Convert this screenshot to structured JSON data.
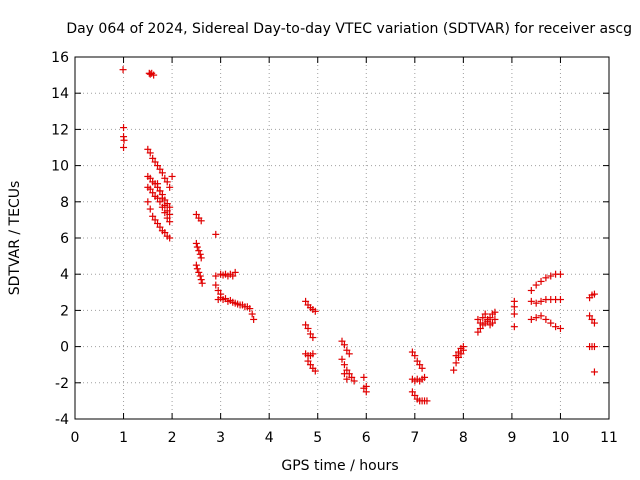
{
  "chart_data": {
    "type": "scatter",
    "title": "Day 064 of 2024, Sidereal Day-to-day VTEC variation (SDTVAR) for receiver ascg",
    "xlabel": "GPS time / hours",
    "ylabel": "SDTVAR / TECUs",
    "xlim": [
      0,
      11
    ],
    "ylim": [
      -4,
      16
    ],
    "xticks": [
      "0",
      "1",
      "2",
      "3",
      "4",
      "5",
      "6",
      "7",
      "8",
      "9",
      "10",
      "11"
    ],
    "yticks": [
      "-4",
      "-2",
      "0",
      "2",
      "4",
      "6",
      "8",
      "10",
      "12",
      "14",
      "16"
    ],
    "grid": true,
    "marker": "plus",
    "color": "#e00000",
    "points": [
      [
        0.99,
        15.3
      ],
      [
        1.0,
        12.1
      ],
      [
        1.0,
        11.6
      ],
      [
        1.01,
        11.4
      ],
      [
        1.0,
        11.0
      ],
      [
        1.53,
        15.1
      ],
      [
        1.55,
        15.05
      ],
      [
        1.58,
        15.1
      ],
      [
        1.62,
        15.0
      ],
      [
        1.5,
        10.9
      ],
      [
        1.55,
        10.7
      ],
      [
        1.6,
        10.4
      ],
      [
        1.65,
        10.2
      ],
      [
        1.7,
        10.0
      ],
      [
        1.75,
        9.8
      ],
      [
        1.8,
        9.6
      ],
      [
        1.85,
        9.3
      ],
      [
        1.9,
        9.1
      ],
      [
        1.95,
        8.8
      ],
      [
        1.5,
        9.4
      ],
      [
        1.55,
        9.3
      ],
      [
        1.6,
        9.1
      ],
      [
        1.65,
        9.0
      ],
      [
        1.7,
        8.8
      ],
      [
        1.75,
        8.6
      ],
      [
        1.8,
        8.4
      ],
      [
        1.85,
        8.1
      ],
      [
        1.9,
        7.9
      ],
      [
        1.95,
        7.7
      ],
      [
        1.5,
        8.8
      ],
      [
        1.55,
        8.7
      ],
      [
        1.6,
        8.5
      ],
      [
        1.65,
        8.3
      ],
      [
        1.7,
        8.2
      ],
      [
        1.75,
        8.0
      ],
      [
        1.8,
        7.7
      ],
      [
        1.85,
        7.4
      ],
      [
        1.9,
        7.1
      ],
      [
        1.95,
        6.9
      ],
      [
        1.5,
        8.0
      ],
      [
        1.55,
        7.6
      ],
      [
        1.6,
        7.2
      ],
      [
        1.65,
        7.0
      ],
      [
        1.7,
        6.8
      ],
      [
        1.75,
        6.6
      ],
      [
        1.8,
        6.4
      ],
      [
        1.85,
        6.3
      ],
      [
        1.9,
        6.1
      ],
      [
        1.95,
        6.0
      ],
      [
        1.7,
        9.0
      ],
      [
        1.75,
        8.6
      ],
      [
        1.8,
        8.2
      ],
      [
        1.85,
        7.8
      ],
      [
        1.9,
        7.5
      ],
      [
        1.95,
        7.3
      ],
      [
        2.0,
        9.4
      ],
      [
        2.5,
        7.3
      ],
      [
        2.55,
        7.1
      ],
      [
        2.6,
        6.95
      ],
      [
        2.5,
        5.7
      ],
      [
        2.52,
        5.5
      ],
      [
        2.55,
        5.3
      ],
      [
        2.58,
        5.1
      ],
      [
        2.6,
        4.9
      ],
      [
        2.5,
        4.5
      ],
      [
        2.52,
        4.3
      ],
      [
        2.55,
        4.1
      ],
      [
        2.58,
        3.9
      ],
      [
        2.6,
        3.7
      ],
      [
        2.62,
        3.5
      ],
      [
        2.9,
        6.2
      ],
      [
        2.9,
        3.9
      ],
      [
        2.9,
        3.4
      ],
      [
        2.95,
        3.1
      ],
      [
        3.0,
        2.9
      ],
      [
        3.0,
        4.0
      ],
      [
        3.05,
        3.95
      ],
      [
        3.1,
        4.0
      ],
      [
        3.15,
        3.9
      ],
      [
        3.2,
        4.0
      ],
      [
        3.25,
        3.9
      ],
      [
        3.3,
        4.1
      ],
      [
        2.95,
        2.6
      ],
      [
        3.0,
        2.7
      ],
      [
        3.05,
        2.6
      ],
      [
        3.1,
        2.65
      ],
      [
        3.15,
        2.5
      ],
      [
        3.2,
        2.55
      ],
      [
        3.25,
        2.45
      ],
      [
        3.3,
        2.4
      ],
      [
        3.35,
        2.35
      ],
      [
        3.4,
        2.3
      ],
      [
        3.45,
        2.3
      ],
      [
        3.5,
        2.2
      ],
      [
        3.55,
        2.2
      ],
      [
        3.6,
        2.1
      ],
      [
        3.65,
        1.8
      ],
      [
        3.68,
        1.5
      ],
      [
        4.75,
        2.5
      ],
      [
        4.8,
        2.3
      ],
      [
        4.85,
        2.15
      ],
      [
        4.9,
        2.05
      ],
      [
        4.95,
        1.95
      ],
      [
        4.75,
        1.2
      ],
      [
        4.8,
        1.0
      ],
      [
        4.85,
        0.7
      ],
      [
        4.9,
        0.5
      ],
      [
        4.75,
        -0.4
      ],
      [
        4.8,
        -0.5
      ],
      [
        4.85,
        -0.5
      ],
      [
        4.9,
        -0.4
      ],
      [
        4.8,
        -0.8
      ],
      [
        4.85,
        -1.0
      ],
      [
        4.9,
        -1.2
      ],
      [
        4.95,
        -1.35
      ],
      [
        5.5,
        0.3
      ],
      [
        5.55,
        0.1
      ],
      [
        5.6,
        -0.2
      ],
      [
        5.65,
        -0.4
      ],
      [
        5.5,
        -0.7
      ],
      [
        5.55,
        -1.0
      ],
      [
        5.6,
        -1.3
      ],
      [
        5.65,
        -1.5
      ],
      [
        5.7,
        -1.7
      ],
      [
        5.75,
        -1.9
      ],
      [
        5.55,
        -1.5
      ],
      [
        5.6,
        -1.8
      ],
      [
        5.95,
        -1.7
      ],
      [
        5.95,
        -2.3
      ],
      [
        6.0,
        -2.5
      ],
      [
        6.0,
        -2.2
      ],
      [
        6.95,
        -0.3
      ],
      [
        7.0,
        -0.5
      ],
      [
        7.05,
        -0.8
      ],
      [
        7.1,
        -1.0
      ],
      [
        7.15,
        -1.2
      ],
      [
        6.95,
        -1.8
      ],
      [
        7.0,
        -1.9
      ],
      [
        7.05,
        -1.8
      ],
      [
        7.1,
        -1.9
      ],
      [
        7.15,
        -1.8
      ],
      [
        7.2,
        -1.7
      ],
      [
        6.95,
        -2.5
      ],
      [
        7.0,
        -2.7
      ],
      [
        7.05,
        -2.9
      ],
      [
        7.1,
        -3.0
      ],
      [
        7.15,
        -3.0
      ],
      [
        7.2,
        -3.0
      ],
      [
        7.25,
        -3.0
      ],
      [
        7.8,
        -1.3
      ],
      [
        7.85,
        -0.9
      ],
      [
        7.9,
        -0.6
      ],
      [
        7.95,
        -0.4
      ],
      [
        8.0,
        -0.2
      ],
      [
        7.85,
        -0.5
      ],
      [
        7.9,
        -0.3
      ],
      [
        7.95,
        -0.1
      ],
      [
        8.0,
        0.0
      ],
      [
        8.3,
        0.8
      ],
      [
        8.35,
        1.0
      ],
      [
        8.4,
        1.2
      ],
      [
        8.45,
        1.3
      ],
      [
        8.5,
        1.4
      ],
      [
        8.55,
        1.6
      ],
      [
        8.6,
        1.8
      ],
      [
        8.65,
        1.9
      ],
      [
        8.3,
        1.5
      ],
      [
        8.35,
        1.3
      ],
      [
        8.4,
        1.6
      ],
      [
        8.45,
        1.8
      ],
      [
        8.5,
        1.5
      ],
      [
        8.55,
        1.2
      ],
      [
        8.6,
        1.3
      ],
      [
        8.65,
        1.5
      ],
      [
        9.05,
        2.5
      ],
      [
        9.05,
        2.2
      ],
      [
        9.05,
        1.8
      ],
      [
        9.05,
        1.1
      ],
      [
        9.4,
        3.1
      ],
      [
        9.5,
        3.4
      ],
      [
        9.6,
        3.6
      ],
      [
        9.7,
        3.8
      ],
      [
        9.8,
        3.9
      ],
      [
        9.9,
        4.0
      ],
      [
        10.0,
        4.0
      ],
      [
        9.4,
        2.5
      ],
      [
        9.5,
        2.4
      ],
      [
        9.6,
        2.5
      ],
      [
        9.7,
        2.6
      ],
      [
        9.8,
        2.6
      ],
      [
        9.9,
        2.6
      ],
      [
        10.0,
        2.6
      ],
      [
        9.4,
        1.5
      ],
      [
        9.5,
        1.6
      ],
      [
        9.6,
        1.7
      ],
      [
        9.7,
        1.5
      ],
      [
        9.8,
        1.3
      ],
      [
        9.9,
        1.1
      ],
      [
        10.0,
        1.0
      ],
      [
        10.6,
        2.7
      ],
      [
        10.65,
        2.85
      ],
      [
        10.7,
        2.9
      ],
      [
        10.6,
        1.7
      ],
      [
        10.65,
        1.5
      ],
      [
        10.7,
        1.3
      ],
      [
        10.6,
        0.0
      ],
      [
        10.65,
        0.0
      ],
      [
        10.7,
        0.0
      ],
      [
        10.7,
        -1.4
      ]
    ]
  }
}
